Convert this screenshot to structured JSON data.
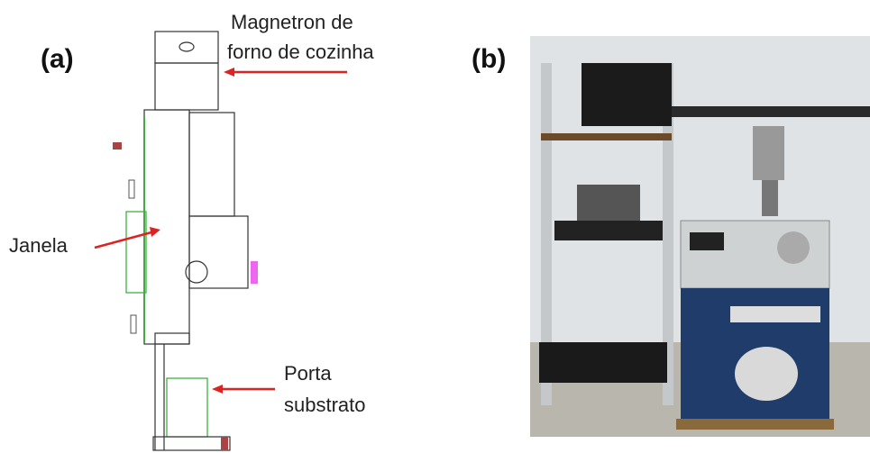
{
  "panel_a": {
    "label": "(a)",
    "magnetron": [
      "Magnetron de",
      "forno de cozinha"
    ],
    "window": "Janela",
    "substrate_holder": [
      "Porta",
      "substrato"
    ]
  },
  "panel_b": {
    "label": "(b)"
  }
}
